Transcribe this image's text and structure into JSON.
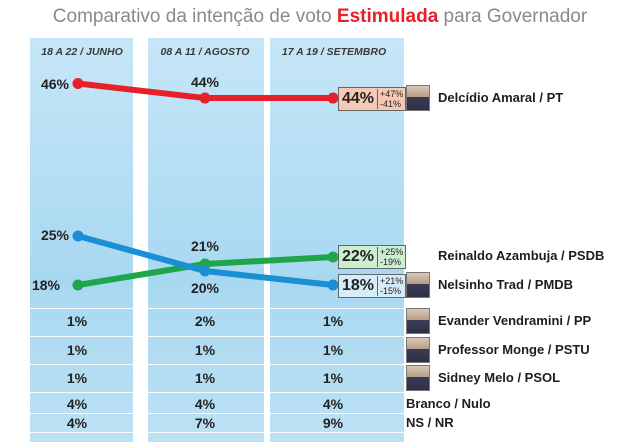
{
  "title": {
    "prefix": "Comparativo da intenção de voto ",
    "highlight": "Estimulada",
    "suffix": " para Governador"
  },
  "periods": [
    "18 A 22 / JUNHO",
    "08 A 11 / AGOSTO",
    "17 A 19 / SETEMBRO"
  ],
  "chart_data": {
    "type": "line",
    "title": "Comparativo da intenção de voto Estimulada para Governador",
    "categories": [
      "18 A 22 / JUNHO",
      "08 A 11 / AGOSTO",
      "17 A 19 / SETEMBRO"
    ],
    "unit": "%",
    "ylim": [
      0,
      50
    ],
    "series": [
      {
        "name": "Delcídio Amaral / PT",
        "color": "#e8202a",
        "values": [
          46,
          44,
          44
        ],
        "labels": [
          "46%",
          "44%",
          "44%"
        ],
        "range": [
          "+47%",
          "-41%"
        ]
      },
      {
        "name": "Reinaldo Azambuja / PSDB",
        "color": "#1fa64a",
        "values": [
          18,
          21,
          22
        ],
        "labels": [
          "18%",
          "21%",
          "22%"
        ],
        "range": [
          "+25%",
          "-19%"
        ]
      },
      {
        "name": "Nelsinho Trad / PMDB",
        "color": "#1b8fd6",
        "values": [
          25,
          20,
          18
        ],
        "labels": [
          "25%",
          "20%",
          "18%"
        ],
        "range": [
          "+21%",
          "-15%"
        ]
      }
    ]
  },
  "table_rows": [
    {
      "name": "Evander Vendramini / PP",
      "values": [
        "1%",
        "2%",
        "1%"
      ],
      "photo": true
    },
    {
      "name": "Professor Monge / PSTU",
      "values": [
        "1%",
        "1%",
        "1%"
      ],
      "photo": true
    },
    {
      "name": "Sidney Melo / PSOL",
      "values": [
        "1%",
        "1%",
        "1%"
      ],
      "photo": true
    },
    {
      "name": "Branco / Nulo",
      "values": [
        "4%",
        "4%",
        "4%"
      ],
      "photo": false
    },
    {
      "name": "NS / NR",
      "values": [
        "4%",
        "7%",
        "9%"
      ],
      "photo": false
    }
  ]
}
